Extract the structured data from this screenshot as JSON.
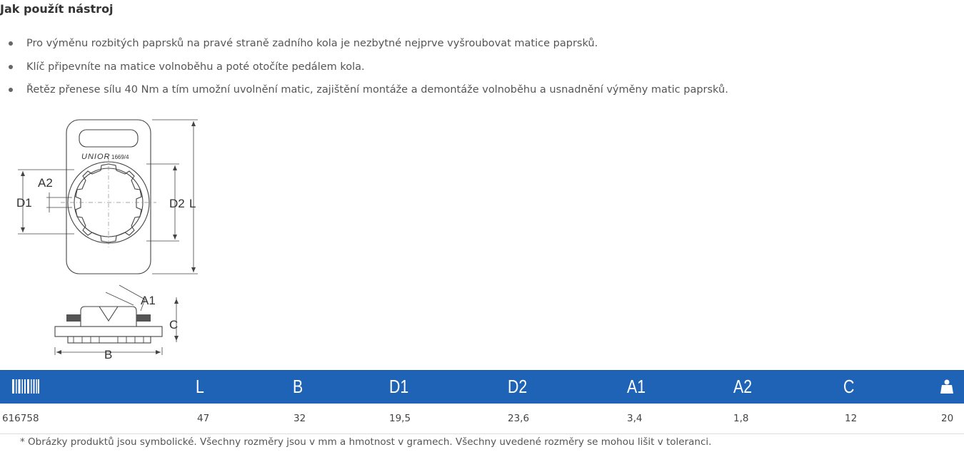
{
  "section": {
    "title": "Jak použít nástroj"
  },
  "bullets": [
    "Pro výměnu rozbitých paprsků na pravé straně zadního kola je nezbytné nejprve vyšroubovat matice paprsků.",
    "Klíč připevníte na matice volnoběhu a poté otočíte pedálem kola.",
    "Řetěz přenese sílu 40 Nm a tím umožní uvolnění matic, zajištění montáže a demontáže volnoběhu a usnadnění výměny matic paprsků."
  ],
  "drawing": {
    "brand": "UNIOR",
    "model": "1669/4",
    "labels": {
      "A2": "A2",
      "D1": "D1",
      "D2": "D2",
      "L": "L",
      "A1": "A1",
      "C": "C",
      "B": "B"
    }
  },
  "table": {
    "header_icons": {
      "first": "barcode-icon",
      "last": "weight-icon"
    },
    "columns": [
      "L",
      "B",
      "D1",
      "D2",
      "A1",
      "A2",
      "C"
    ],
    "row": {
      "code": "616758",
      "L": "47",
      "B": "32",
      "D1": "19,5",
      "D2": "23,6",
      "A1": "3,4",
      "A2": "1,8",
      "C": "12",
      "weight": "20"
    },
    "colors": {
      "header_bg": "#1e63b5",
      "header_text": "#ffffff"
    }
  },
  "footnote": "* Obrázky produktů jsou symbolické. Všechny rozměry jsou v mm a hmotnost v gramech. Všechny uvedené rozměry se mohou lišit v toleranci."
}
